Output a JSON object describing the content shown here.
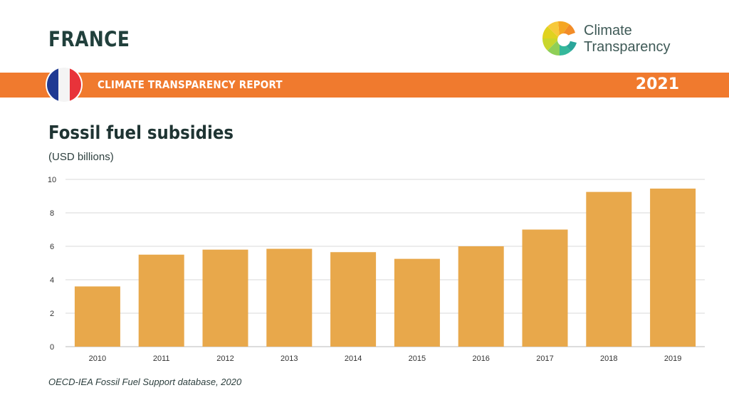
{
  "header": {
    "country": "FRANCE",
    "banner_title": "CLIMATE TRANSPARENCY REPORT",
    "year": "2021",
    "logo_line1": "Climate",
    "logo_line2": "Transparency"
  },
  "colors": {
    "banner": "#f07a2e",
    "bar": "#e8a84b",
    "grid": "#d9d9d9"
  },
  "chart_data": {
    "type": "bar",
    "title": "Fossil fuel subsidies",
    "subtitle": "(USD billions)",
    "categories": [
      "2010",
      "2011",
      "2012",
      "2013",
      "2014",
      "2015",
      "2016",
      "2017",
      "2018",
      "2019"
    ],
    "values": [
      3.6,
      5.5,
      5.8,
      5.85,
      5.65,
      5.25,
      6.0,
      7.0,
      9.25,
      9.45
    ],
    "ylim": [
      0,
      10
    ],
    "yticks": [
      "0",
      "2",
      "4",
      "6",
      "8",
      "10"
    ],
    "grid": true,
    "legend": "none"
  },
  "source": "OECD-IEA Fossil Fuel Support database, 2020"
}
